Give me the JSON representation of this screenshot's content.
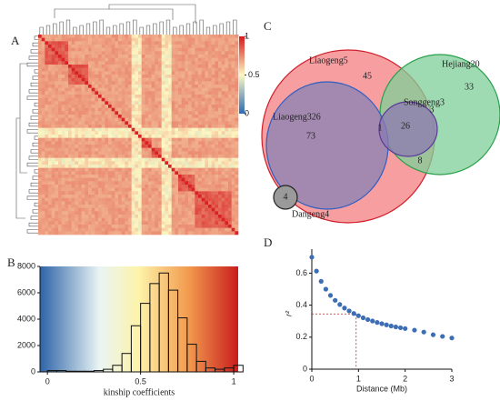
{
  "panel_labels": [
    "A",
    "B",
    "C",
    "D"
  ],
  "chart_data": [
    {
      "type": "heatmap",
      "zlim": [
        0,
        1
      ],
      "zticks": [
        0,
        0.5,
        1
      ]
    },
    {
      "type": "histogram",
      "xlabel": "kinship coefficients",
      "bins": [
        0,
        0.05,
        0.1,
        0.15,
        0.2,
        0.25,
        0.3,
        0.35,
        0.4,
        0.45,
        0.5,
        0.55,
        0.6,
        0.65,
        0.7,
        0.75,
        0.8,
        0.85,
        0.9,
        0.95,
        1.0,
        1.05
      ],
      "counts": [
        100,
        100,
        50,
        50,
        50,
        100,
        200,
        500,
        1400,
        3500,
        5200,
        6700,
        7500,
        6200,
        4100,
        2100,
        800,
        300,
        200,
        300,
        500
      ],
      "xlim": [
        -0.04,
        1.024
      ],
      "xticks": [
        0,
        0.5,
        1
      ],
      "ylim": [
        0,
        8000
      ],
      "yticks": [
        0,
        2000,
        4000,
        6000,
        8000
      ]
    },
    {
      "type": "venn",
      "sets": [
        "Liaogeng5",
        "Hejiang20",
        "Liaogeng326",
        "Songgeng3",
        "Dangeng4"
      ],
      "regions": [
        45,
        33,
        73,
        26,
        3,
        1,
        8,
        4
      ]
    },
    {
      "type": "scatter",
      "xlabel": "Distance (Mb)",
      "ylabel": "r²",
      "color": "#3d6db5",
      "x": [
        0,
        0.1,
        0.2,
        0.3,
        0.4,
        0.5,
        0.6,
        0.7,
        0.8,
        0.9,
        1.0,
        1.1,
        1.2,
        1.3,
        1.4,
        1.5,
        1.6,
        1.7,
        1.8,
        1.9,
        2.0,
        2.2,
        2.4,
        2.6,
        2.8,
        3.0
      ],
      "values": [
        0.7,
        0.613,
        0.549,
        0.5,
        0.461,
        0.43,
        0.404,
        0.382,
        0.364,
        0.348,
        0.334,
        0.321,
        0.31,
        0.301,
        0.292,
        0.284,
        0.277,
        0.27,
        0.264,
        0.259,
        0.254,
        0.244,
        0.232,
        0.215,
        0.205,
        0.195
      ],
      "reference": {
        "x": 0.95,
        "y": 0.345
      },
      "xlim": [
        0,
        3
      ],
      "xticks": [
        0,
        1,
        2,
        3
      ],
      "ylim": [
        0,
        0.75
      ],
      "yticks": [
        0,
        0.2,
        0.4,
        0.6
      ]
    }
  ]
}
